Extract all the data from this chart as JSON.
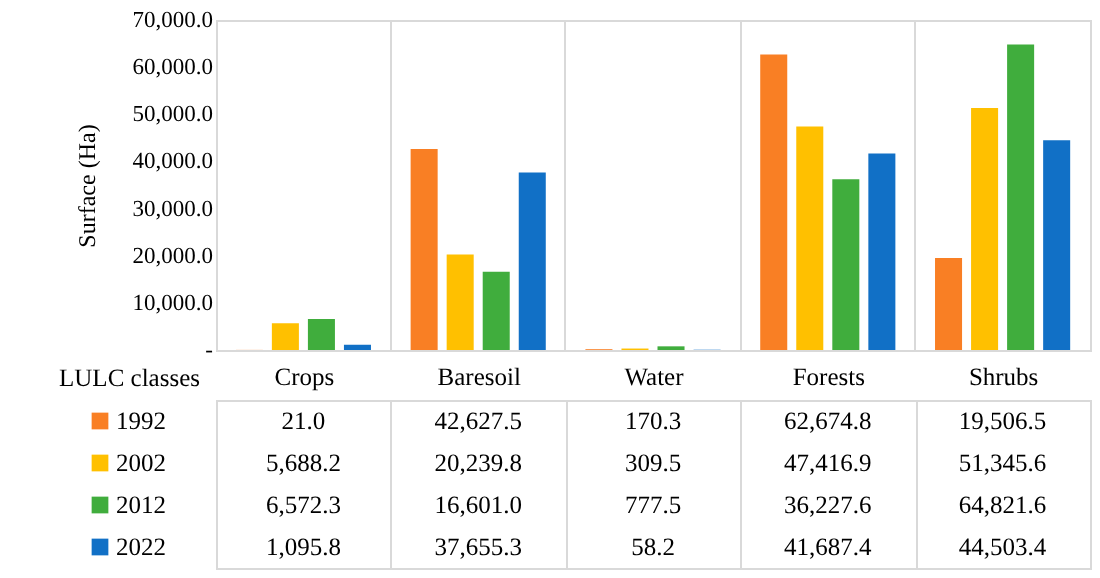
{
  "chart_data": {
    "type": "bar",
    "ylabel": "Surface (Ha)",
    "xlabel": "LULC classes",
    "categories": [
      "Crops",
      "Baresoil",
      "Water",
      "Forests",
      "Shrubs"
    ],
    "series": [
      {
        "name": "1992",
        "color": "#f97f24",
        "values": [
          21.0,
          42627.5,
          170.3,
          62674.8,
          19506.5
        ],
        "value_labels": [
          "21.0",
          "42,627.5",
          "170.3",
          "62,674.8",
          "19,506.5"
        ]
      },
      {
        "name": "2002",
        "color": "#ffc000",
        "values": [
          5688.2,
          20239.8,
          309.5,
          47416.9,
          51345.6
        ],
        "value_labels": [
          "5,688.2",
          "20,239.8",
          "309.5",
          "47,416.9",
          "51,345.6"
        ]
      },
      {
        "name": "2012",
        "color": "#40ad3d",
        "values": [
          6572.3,
          16601.0,
          777.5,
          36227.6,
          64821.6
        ],
        "value_labels": [
          "6,572.3",
          "16,601.0",
          "777.5",
          "36,227.6",
          "64,821.6"
        ]
      },
      {
        "name": "2022",
        "color": "#1170c6",
        "values": [
          1095.8,
          37655.3,
          58.2,
          41687.4,
          44503.4
        ],
        "value_labels": [
          "1,095.8",
          "37,655.3",
          "58.2",
          "41,687.4",
          "44,503.4"
        ]
      }
    ],
    "ylim": [
      0,
      70000
    ],
    "yticks": [
      {
        "value": 0,
        "label": "-"
      },
      {
        "value": 10000,
        "label": "10,000.0"
      },
      {
        "value": 20000,
        "label": "20,000.0"
      },
      {
        "value": 30000,
        "label": "30,000.0"
      },
      {
        "value": 40000,
        "label": "40,000.0"
      },
      {
        "value": 50000,
        "label": "50,000.0"
      },
      {
        "value": 60000,
        "label": "60,000.0"
      },
      {
        "value": 70000,
        "label": "70,000.0"
      }
    ],
    "legend": "bottom left"
  }
}
